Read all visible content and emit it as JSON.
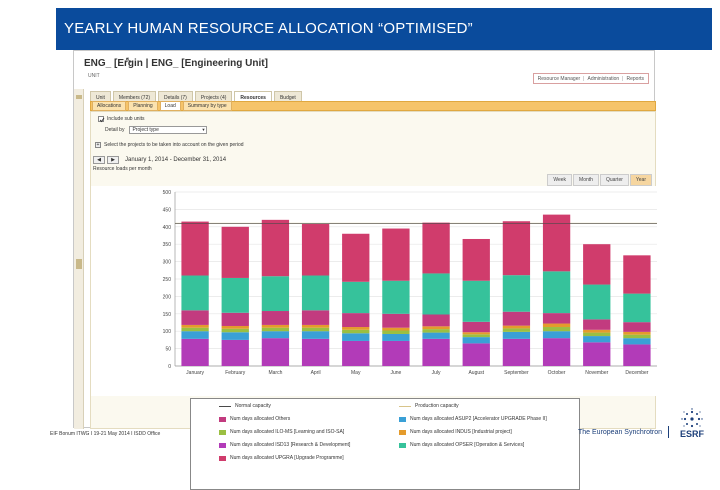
{
  "slide": {
    "title": "YEARLY HUMAN RESOURCE ALLOCATION “OPTIMISED”",
    "footer": "EIF Bonum ITWG I 19-21 May 2014 I ISDD Office",
    "tagline": "The European Synchrotron",
    "logo_text": "ESRF"
  },
  "app": {
    "title": "ENG_ [Ergin | ENG_ [Engineering Unit]",
    "subtitle": "UNIT",
    "top_links": [
      "Resource Manager",
      "Administration",
      "Reports"
    ],
    "tabs": [
      "Unit",
      "Members (72)",
      "Details (7)",
      "Projects (4)",
      "Resources",
      "Budget"
    ],
    "active_tab": "Resources",
    "subtabs": [
      "Allocations",
      "Planning",
      "Load",
      "Summary by type"
    ],
    "active_subtab": "Load",
    "include_sub_units": "Include sub units",
    "detail_by_label": "Detail by",
    "detail_by_value": "Project type",
    "select_projects": "Select the projects to be taken into account on the given period",
    "date_range": "January 1, 2014 - December 31, 2014",
    "loads_label": "Resource loads per month",
    "period_tabs": [
      "Week",
      "Month",
      "Quarter",
      "Year"
    ],
    "active_period": "Year",
    "colors": {
      "others": "#c23b7f",
      "upgrade_asupr": "#3aa0d6",
      "ilo_ms": "#9bbf42",
      "industrial": "#e49b2c",
      "isdd": "#b23bb8",
      "opser": "#36c29b",
      "upgra": "#d03c6c"
    }
  },
  "chart_data": {
    "type": "bar",
    "stacked": true,
    "categories": [
      "January",
      "February",
      "March",
      "April",
      "May",
      "June",
      "July",
      "August",
      "September",
      "October",
      "November",
      "December"
    ],
    "ylim": [
      0,
      500
    ],
    "yticks": [
      "0",
      "50",
      "100",
      "150",
      "200",
      "250",
      "300",
      "350",
      "400",
      "450",
      "500"
    ],
    "series": [
      {
        "name": "Num days allocated ISD13 [Research & Development]",
        "color": "#b23bb8",
        "values": [
          78,
          75,
          80,
          78,
          72,
          72,
          78,
          65,
          78,
          80,
          68,
          62
        ]
      },
      {
        "name": "Num days allocated ASUP2 [Accelerator UPGRADE Phase II]",
        "color": "#3aa0d6",
        "values": [
          22,
          22,
          20,
          22,
          22,
          20,
          18,
          18,
          20,
          20,
          18,
          18
        ]
      },
      {
        "name": "Num days allocated ILO-MS [Learning and ISO-SA]",
        "color": "#9bbf42",
        "values": [
          10,
          10,
          10,
          10,
          10,
          10,
          10,
          8,
          10,
          12,
          10,
          10
        ]
      },
      {
        "name": "Num days allocated INDUS [Industrial project]",
        "color": "#e49b2c",
        "values": [
          8,
          8,
          8,
          8,
          8,
          8,
          8,
          6,
          8,
          10,
          8,
          8
        ]
      },
      {
        "name": "Num days allocated Others",
        "color": "#c23b7f",
        "values": [
          42,
          38,
          40,
          42,
          40,
          40,
          34,
          30,
          40,
          30,
          30,
          28
        ]
      },
      {
        "name": "Num days allocated OPSER [Operation & Services]",
        "color": "#36c29b",
        "values": [
          100,
          100,
          100,
          100,
          90,
          95,
          118,
          118,
          105,
          120,
          100,
          82
        ]
      },
      {
        "name": "Num days allocated UPGRA [Upgrade Programme]",
        "color": "#d03c6c",
        "values": [
          155,
          147,
          162,
          148,
          138,
          150,
          146,
          120,
          155,
          163,
          116,
          110
        ]
      }
    ],
    "normal_capacity_label": "Normal capacity",
    "production_capacity_label": "Production capacity",
    "normal_capacity": 410,
    "production_capacity": 410
  }
}
